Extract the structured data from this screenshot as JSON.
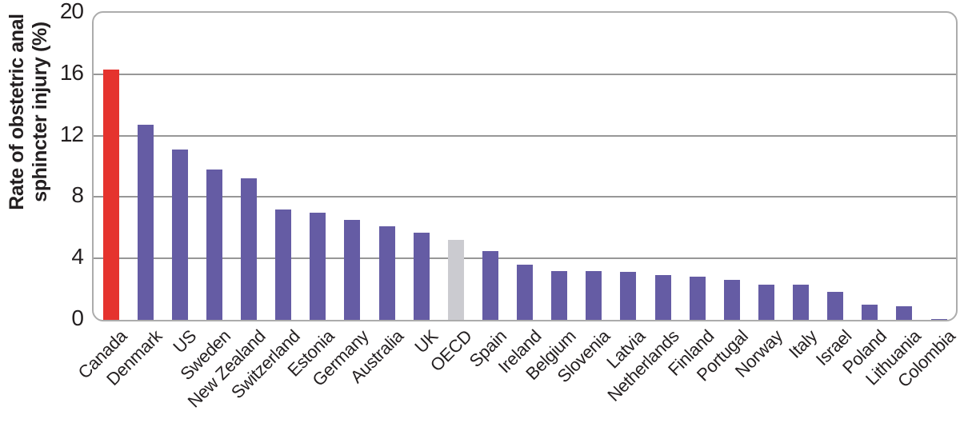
{
  "chart_data": {
    "type": "bar",
    "title": "",
    "xlabel": "",
    "ylabel": "Rate of obstetric anal sphincter injury (%)",
    "ylabel_lines": [
      "Rate of obstetric anal",
      "sphincter injury (%)"
    ],
    "ylim": [
      0,
      20
    ],
    "yticks": [
      0,
      4,
      8,
      12,
      16,
      20
    ],
    "grid": "horizontal gridlines at 4, 8, 12, 16; rounded rectangular frame",
    "legend_position": "none",
    "categories": [
      "Canada",
      "Denmark",
      "US",
      "Sweden",
      "New Zealand",
      "Switzerland",
      "Estonia",
      "Germany",
      "Australia",
      "UK",
      "OECD",
      "Spain",
      "Ireland",
      "Belgium",
      "Slovenia",
      "Latvia",
      "Netherlands",
      "Finland",
      "Portugal",
      "Norway",
      "Italy",
      "Israel",
      "Poland",
      "Lithuania",
      "Colombia"
    ],
    "values": [
      16.3,
      12.7,
      11.1,
      9.8,
      9.2,
      7.2,
      7.0,
      6.5,
      6.1,
      5.7,
      5.2,
      4.5,
      3.6,
      3.2,
      3.2,
      3.1,
      2.9,
      2.8,
      2.6,
      2.3,
      2.3,
      1.8,
      1.0,
      0.9,
      0.05
    ],
    "highlight_category": "Canada",
    "reference_category": "OECD",
    "colors": {
      "bar_default": "#655CA4",
      "bar_highlight": "#E5332E",
      "bar_reference": "#CBCBD0",
      "frame_border": "#ACACAC",
      "gridline": "#979797",
      "text": "#231F20"
    }
  }
}
